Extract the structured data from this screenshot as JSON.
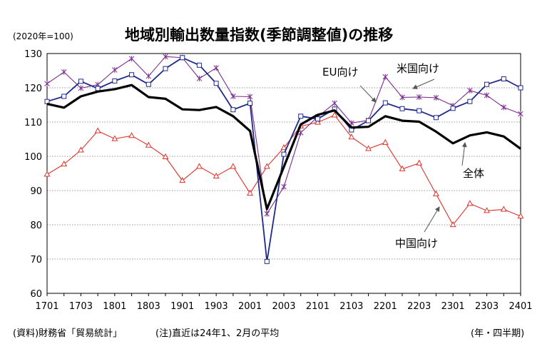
{
  "header": {
    "unit": "(2020年=100)",
    "title": "地域別輸出数量指数(季節調整値)の推移"
  },
  "footer": {
    "source": "(資料)財務省「貿易統計」",
    "note": "(注)直近は24年1、2月の平均",
    "period": "(年・四半期)"
  },
  "chart_data": {
    "type": "line",
    "title": "地域別輸出数量指数(季節調整値)の推移",
    "xlabel": "",
    "ylabel": "",
    "ylim": [
      60,
      130
    ],
    "yticks": [
      60,
      70,
      80,
      90,
      100,
      110,
      120,
      130
    ],
    "grid": true,
    "x_categories": [
      "1701",
      "1702",
      "1703",
      "1704",
      "1801",
      "1802",
      "1803",
      "1804",
      "1901",
      "1902",
      "1903",
      "1904",
      "2001",
      "2002",
      "2003",
      "2004",
      "2101",
      "2102",
      "2103",
      "2104",
      "2201",
      "2202",
      "2203",
      "2204",
      "2301",
      "2302",
      "2303",
      "2304",
      "2401"
    ],
    "x_tick_labels": [
      "1701",
      "1703",
      "1801",
      "1803",
      "1901",
      "1903",
      "2001",
      "2003",
      "2101",
      "2103",
      "2201",
      "2203",
      "2301",
      "2303",
      "2401"
    ],
    "colors": {
      "全体": "#000000",
      "EU向け": "#1f2a8a",
      "米国向け": "#7b2d8e",
      "中国向け": "#e0322c",
      "grid": "#777777",
      "arrow": "#555555"
    },
    "series": [
      {
        "name": "全体",
        "marker": "none",
        "values": [
          115.3,
          114.2,
          117.5,
          118.9,
          119.6,
          120.8,
          117.3,
          116.8,
          113.7,
          113.5,
          114.4,
          111.7,
          107.4,
          84.6,
          96.9,
          109.3,
          112.1,
          113.4,
          108.4,
          108.6,
          111.7,
          110.4,
          110.1,
          107.2,
          103.8,
          106.1,
          107.0,
          105.8,
          102.2
        ]
      },
      {
        "name": "EU向け",
        "marker": "open-square",
        "values": [
          116.0,
          117.5,
          121.9,
          119.8,
          122.0,
          123.8,
          121.0,
          125.6,
          128.8,
          126.6,
          121.3,
          113.6,
          115.5,
          69.3,
          100.6,
          111.7,
          110.9,
          113.8,
          107.7,
          110.4,
          115.6,
          113.9,
          113.3,
          111.3,
          114.0,
          116.0,
          121.0,
          122.6,
          120.0
        ]
      },
      {
        "name": "米国向け",
        "marker": "asterisk",
        "values": [
          121.2,
          124.6,
          119.9,
          120.9,
          125.2,
          128.5,
          123.4,
          129.1,
          128.8,
          122.7,
          125.8,
          117.5,
          117.4,
          83.2,
          91.1,
          106.9,
          111.5,
          115.5,
          109.7,
          110.5,
          123.2,
          117.2,
          117.3,
          117.1,
          114.8,
          119.2,
          117.8,
          114.3,
          112.4
        ]
      },
      {
        "name": "中国向け",
        "marker": "open-triangle",
        "values": [
          94.7,
          97.7,
          101.8,
          107.4,
          105.1,
          106.0,
          103.2,
          99.8,
          92.9,
          97.0,
          94.2,
          97.0,
          89.2,
          97.0,
          102.5,
          108.8,
          109.9,
          112.0,
          105.6,
          102.2,
          104.0,
          96.3,
          98.0,
          89.0,
          80.0,
          86.2,
          84.1,
          84.5,
          82.5
        ]
      }
    ],
    "annotations": [
      {
        "text": "EU向け",
        "series": "EU向け"
      },
      {
        "text": "米国向け",
        "series": "米国向け"
      },
      {
        "text": "全体",
        "series": "全体"
      },
      {
        "text": "中国向け",
        "series": "中国向け"
      }
    ]
  }
}
